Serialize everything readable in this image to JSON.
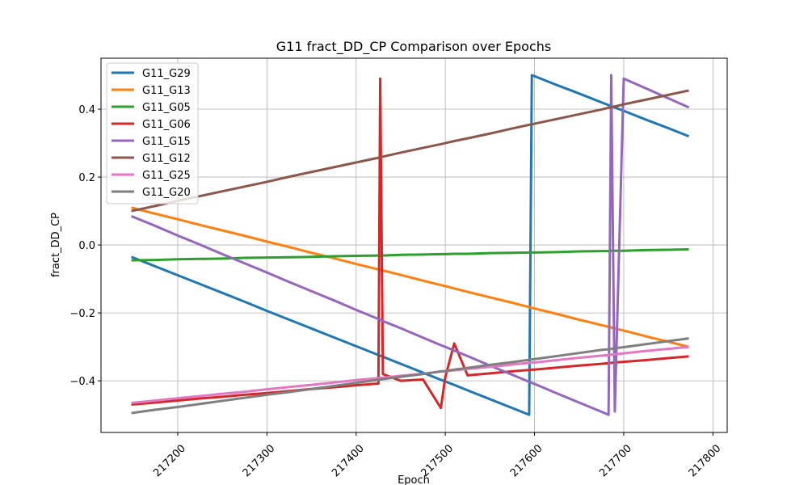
{
  "chart_data": {
    "type": "line",
    "title": "G11 fract_DD_CP Comparison over Epochs",
    "xlabel": "Epoch",
    "ylabel": "fract_DD_CP",
    "x": [
      217148,
      217175,
      217200,
      217225,
      217250,
      217275,
      217300,
      217325,
      217350,
      217375,
      217400,
      217425,
      217427,
      217430,
      217450,
      217475,
      217495,
      217500,
      217510,
      217525,
      217550,
      217575,
      217594,
      217597,
      217600,
      217625,
      217650,
      217675,
      217683,
      217686,
      217690,
      217700,
      217725,
      217750,
      217773
    ],
    "series": [
      {
        "name": "G11_G29",
        "color": "#1f77b4",
        "values": [
          -0.035,
          -0.063,
          -0.089,
          -0.115,
          -0.141,
          -0.167,
          -0.194,
          -0.22,
          -0.246,
          -0.272,
          -0.298,
          -0.324,
          -0.326,
          -0.329,
          -0.35,
          -0.376,
          -0.397,
          -0.402,
          -0.412,
          -0.428,
          -0.454,
          -0.48,
          -0.5,
          0.5,
          0.497,
          0.471,
          0.446,
          0.42,
          0.412,
          0.409,
          0.405,
          0.395,
          0.369,
          0.344,
          0.32
        ]
      },
      {
        "name": "G11_G13",
        "color": "#ff7f0e",
        "values": [
          0.11,
          0.092,
          0.076,
          0.059,
          0.043,
          0.027,
          0.01,
          -0.006,
          -0.023,
          -0.039,
          -0.056,
          -0.072,
          -0.073,
          -0.075,
          -0.088,
          -0.105,
          -0.118,
          -0.121,
          -0.128,
          -0.138,
          -0.154,
          -0.17,
          -0.183,
          -0.185,
          -0.187,
          -0.203,
          -0.22,
          -0.236,
          -0.241,
          -0.243,
          -0.246,
          -0.252,
          -0.269,
          -0.285,
          -0.3
        ]
      },
      {
        "name": "G11_G05",
        "color": "#2ca02c",
        "values": [
          -0.045,
          -0.044,
          -0.042,
          -0.041,
          -0.04,
          -0.038,
          -0.037,
          -0.036,
          -0.035,
          -0.033,
          -0.032,
          -0.031,
          -0.031,
          -0.031,
          -0.029,
          -0.028,
          -0.027,
          -0.027,
          -0.026,
          -0.026,
          -0.024,
          -0.023,
          -0.022,
          -0.022,
          -0.022,
          -0.021,
          -0.019,
          -0.018,
          -0.018,
          -0.017,
          -0.017,
          -0.017,
          -0.015,
          -0.014,
          -0.013
        ]
      },
      {
        "name": "G11_G06",
        "color": "#d62728",
        "values": [
          -0.47,
          -0.464,
          -0.458,
          -0.452,
          -0.447,
          -0.441,
          -0.436,
          -0.43,
          -0.424,
          -0.419,
          -0.413,
          -0.408,
          0.49,
          -0.38,
          -0.4,
          -0.396,
          -0.48,
          -0.389,
          -0.29,
          -0.384,
          -0.378,
          -0.372,
          -0.368,
          -0.367,
          -0.367,
          -0.361,
          -0.355,
          -0.35,
          -0.348,
          -0.347,
          -0.346,
          -0.344,
          -0.339,
          -0.333,
          -0.328
        ]
      },
      {
        "name": "G11_G15",
        "color": "#9467bd",
        "values": [
          0.085,
          0.056,
          0.028,
          0.001,
          -0.027,
          -0.054,
          -0.081,
          -0.109,
          -0.136,
          -0.163,
          -0.191,
          -0.218,
          -0.22,
          -0.224,
          -0.245,
          -0.273,
          -0.295,
          -0.3,
          -0.311,
          -0.327,
          -0.355,
          -0.382,
          -0.403,
          -0.406,
          -0.409,
          -0.437,
          -0.464,
          -0.491,
          -0.5,
          0.5,
          -0.49,
          0.49,
          0.461,
          0.432,
          0.405
        ]
      },
      {
        "name": "G11_G12",
        "color": "#8c564b",
        "values": [
          0.1,
          0.115,
          0.13,
          0.144,
          0.158,
          0.172,
          0.186,
          0.201,
          0.215,
          0.229,
          0.243,
          0.257,
          0.258,
          0.26,
          0.272,
          0.286,
          0.297,
          0.3,
          0.306,
          0.314,
          0.328,
          0.343,
          0.354,
          0.355,
          0.357,
          0.371,
          0.385,
          0.399,
          0.404,
          0.406,
          0.408,
          0.414,
          0.428,
          0.442,
          0.455
        ]
      },
      {
        "name": "G11_G25",
        "color": "#e377c2",
        "values": [
          -0.465,
          -0.458,
          -0.451,
          -0.445,
          -0.438,
          -0.432,
          -0.425,
          -0.418,
          -0.412,
          -0.405,
          -0.398,
          -0.392,
          -0.391,
          -0.391,
          -0.385,
          -0.379,
          -0.373,
          -0.372,
          -0.369,
          -0.365,
          -0.359,
          -0.352,
          -0.347,
          -0.346,
          -0.346,
          -0.339,
          -0.332,
          -0.326,
          -0.324,
          -0.323,
          -0.322,
          -0.319,
          -0.312,
          -0.306,
          -0.3
        ]
      },
      {
        "name": "G11_G20",
        "color": "#7f7f7f",
        "values": [
          -0.495,
          -0.485,
          -0.477,
          -0.468,
          -0.459,
          -0.45,
          -0.441,
          -0.433,
          -0.424,
          -0.415,
          -0.406,
          -0.397,
          -0.396,
          -0.395,
          -0.388,
          -0.38,
          -0.372,
          -0.371,
          -0.367,
          -0.362,
          -0.353,
          -0.345,
          -0.338,
          -0.337,
          -0.336,
          -0.327,
          -0.318,
          -0.309,
          -0.307,
          -0.306,
          -0.304,
          -0.301,
          -0.292,
          -0.283,
          -0.275
        ]
      }
    ],
    "xlim": [
      217114,
      217816
    ],
    "ylim": [
      -0.552,
      0.55
    ],
    "xticks": [
      217200,
      217300,
      217400,
      217500,
      217600,
      217700,
      217800
    ],
    "yticks": [
      {
        "value": -0.4,
        "label": "−0.4"
      },
      {
        "value": -0.2,
        "label": "−0.2"
      },
      {
        "value": 0,
        "label": "0.0"
      },
      0.2,
      0.4
    ],
    "grid": true,
    "legend": "upper-left"
  }
}
